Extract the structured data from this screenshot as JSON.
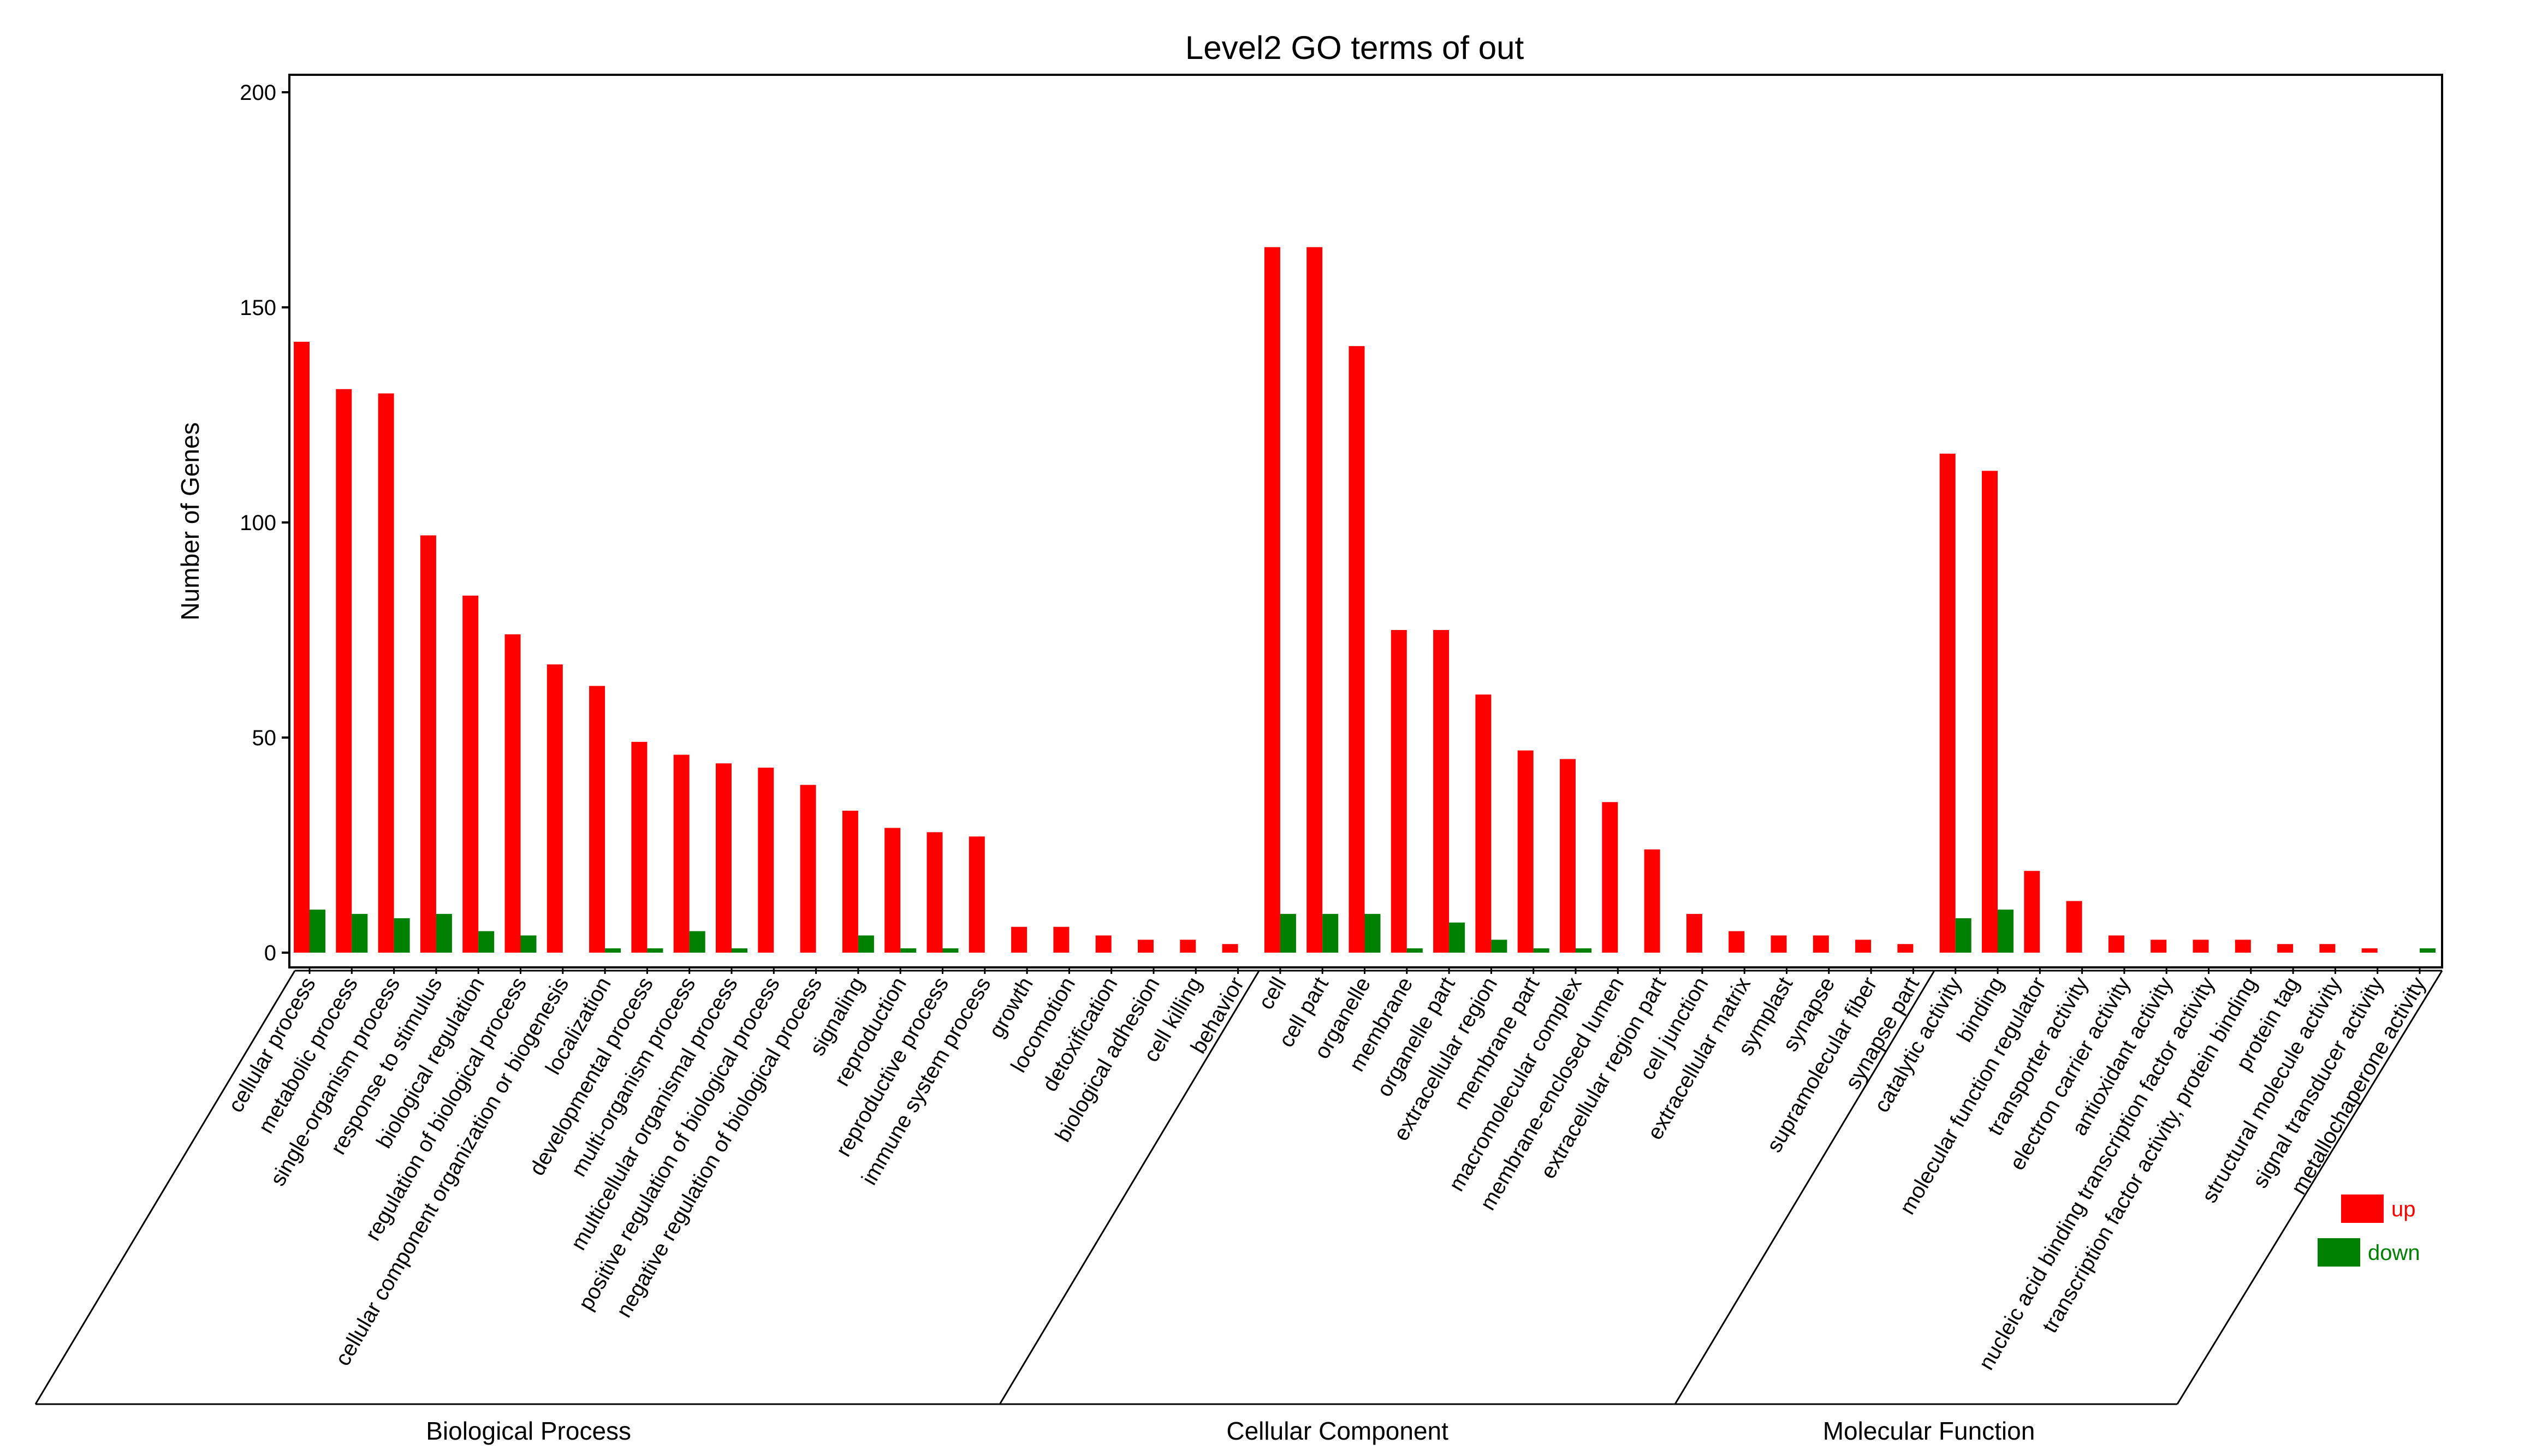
{
  "chart_data": {
    "type": "bar",
    "title": "Level2 GO terms of out",
    "xlabel": "",
    "ylabel": "Number of Genes",
    "ylim": [
      0,
      200
    ],
    "yticks": [
      0,
      50,
      100,
      150,
      200
    ],
    "grid": false,
    "legend_position": "bottom-right",
    "categories": [
      "cellular process",
      "metabolic process",
      "single-organism process",
      "response to stimulus",
      "biological regulation",
      "regulation of biological process",
      "cellular component organization or biogenesis",
      "localization",
      "developmental process",
      "multi-organism process",
      "multicellular organismal process",
      "positive regulation of biological process",
      "negative regulation of biological process",
      "signaling",
      "reproduction",
      "reproductive process",
      "immune system process",
      "growth",
      "locomotion",
      "detoxification",
      "biological adhesion",
      "cell killing",
      "behavior",
      "cell",
      "cell part",
      "organelle",
      "membrane",
      "organelle part",
      "extracellular region",
      "membrane part",
      "macromolecular complex",
      "membrane-enclosed lumen",
      "extracellular region part",
      "cell junction",
      "extracellular matrix",
      "symplast",
      "synapse",
      "supramolecular fiber",
      "synapse part",
      "catalytic activity",
      "binding",
      "molecular function regulator",
      "transporter activity",
      "electron carrier activity",
      "antioxidant activity",
      "nucleic acid binding transcription factor activity",
      "transcription factor activity, protein binding",
      "protein tag",
      "structural molecule activity",
      "signal transducer activity",
      "metallochaperone activity"
    ],
    "series": [
      {
        "name": "up",
        "color": "#ff0000",
        "values": [
          142,
          131,
          130,
          97,
          83,
          74,
          67,
          62,
          49,
          46,
          44,
          43,
          39,
          33,
          29,
          28,
          27,
          6,
          6,
          4,
          3,
          3,
          2,
          164,
          164,
          141,
          75,
          75,
          60,
          47,
          45,
          35,
          24,
          9,
          5,
          4,
          4,
          3,
          2,
          116,
          112,
          19,
          12,
          4,
          3,
          3,
          3,
          2,
          2,
          1,
          0
        ]
      },
      {
        "name": "down",
        "color": "#008000",
        "values": [
          10,
          9,
          8,
          9,
          5,
          4,
          0,
          1,
          1,
          5,
          1,
          0,
          0,
          4,
          1,
          1,
          0,
          0,
          0,
          0,
          0,
          0,
          0,
          9,
          9,
          9,
          1,
          7,
          3,
          1,
          1,
          0,
          0,
          0,
          0,
          0,
          0,
          0,
          0,
          8,
          10,
          0,
          0,
          0,
          0,
          0,
          0,
          0,
          0,
          0,
          1
        ]
      }
    ],
    "groups": [
      {
        "name": "Biological Process",
        "start": 0,
        "end": 22
      },
      {
        "name": "Cellular Component",
        "start": 23,
        "end": 38
      },
      {
        "name": "Molecular Function",
        "start": 39,
        "end": 50
      }
    ]
  }
}
